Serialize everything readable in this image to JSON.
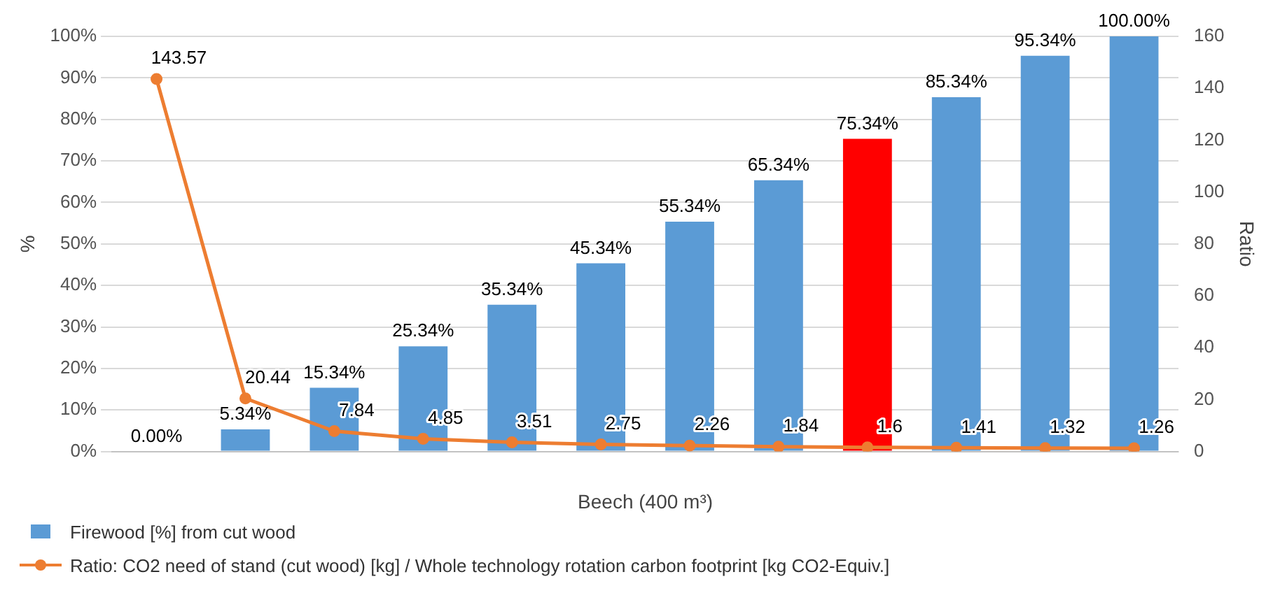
{
  "chart_data": {
    "type": "bar",
    "xlabel": "Beech (400 m³)",
    "ylabel": "%",
    "y2label": "Ratio",
    "categories": [
      null,
      null,
      null,
      null,
      null,
      null,
      null,
      null,
      null,
      null,
      null,
      null
    ],
    "series": [
      {
        "name": "Firewood [%] from cut wood",
        "color": "#5b9bd5",
        "colors": [
          "#5b9bd5",
          "#5b9bd5",
          "#5b9bd5",
          "#5b9bd5",
          "#5b9bd5",
          "#5b9bd5",
          "#5b9bd5",
          "#5b9bd5",
          "#ff0000",
          "#5b9bd5",
          "#5b9bd5",
          "#5b9bd5"
        ],
        "values": [
          0,
          5.34,
          15.34,
          25.34,
          35.34,
          45.34,
          55.34,
          65.34,
          75.34,
          85.34,
          95.34,
          100
        ],
        "value_labels": [
          "0.00%",
          "5.34%",
          "15.34%",
          "25.34%",
          "35.34%",
          "45.34%",
          "55.34%",
          "65.34%",
          "75.34%",
          "85.34%",
          "95.34%",
          "100.00%"
        ]
      },
      {
        "type": "line",
        "axis": "y2",
        "name": "Ratio: CO2 need of stand (cut wood) [kg] / Whole technology rotation carbon footprint [kg CO2-Equiv.]",
        "color": "#ed7d31",
        "values": [
          143.57,
          20.44,
          7.84,
          4.85,
          3.51,
          2.75,
          2.26,
          1.84,
          1.6,
          1.41,
          1.32,
          1.26
        ],
        "value_labels": [
          "143.57",
          "20.44",
          "7.84",
          "4.85",
          "3.51",
          "2.75",
          "2.26",
          "1.84",
          "1.6",
          "1.41",
          "1.32",
          "1.26"
        ]
      }
    ],
    "ylim": [
      0,
      100
    ],
    "yticks": [
      {
        "value": 0,
        "label": "0%"
      },
      {
        "value": 10,
        "label": "10%"
      },
      {
        "value": 20,
        "label": "20%"
      },
      {
        "value": 30,
        "label": "30%"
      },
      {
        "value": 40,
        "label": "40%"
      },
      {
        "value": 50,
        "label": "50%"
      },
      {
        "value": 60,
        "label": "60%"
      },
      {
        "value": 70,
        "label": "70%"
      },
      {
        "value": 80,
        "label": "80%"
      },
      {
        "value": 90,
        "label": "90%"
      },
      {
        "value": 100,
        "label": "100%"
      }
    ],
    "y2lim": [
      0,
      160
    ],
    "y2ticks": [
      0,
      20,
      40,
      60,
      80,
      100,
      120,
      140,
      160
    ],
    "grid": "y",
    "legend": "bottom",
    "marker": "circle",
    "line_style": "solid"
  }
}
